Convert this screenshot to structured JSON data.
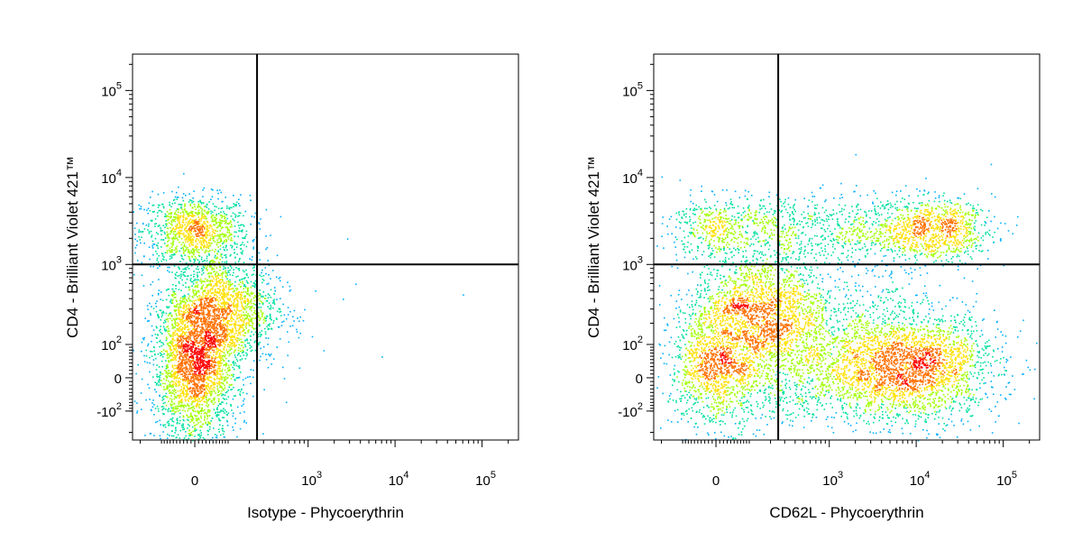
{
  "chart_data": [
    {
      "type": "scatter",
      "style": "density-dot-plot",
      "xlabel": "Isotype - Phycoerythrin",
      "ylabel": "CD4 - Brilliant Violet 421™",
      "x_scale": "biexponential",
      "y_scale": "biexponential",
      "x_ticks": [
        {
          "value": 0,
          "base": "0",
          "exp": ""
        },
        {
          "value": 1000,
          "base": "10",
          "exp": "3"
        },
        {
          "value": 10000,
          "base": "10",
          "exp": "4"
        },
        {
          "value": 100000,
          "base": "10",
          "exp": "5"
        }
      ],
      "y_ticks": [
        {
          "value": -100,
          "base": "-10",
          "exp": "2"
        },
        {
          "value": 0,
          "base": "0",
          "exp": ""
        },
        {
          "value": 100,
          "base": "10",
          "exp": "2"
        },
        {
          "value": 1000,
          "base": "10",
          "exp": "3"
        },
        {
          "value": 10000,
          "base": "10",
          "exp": "4"
        },
        {
          "value": 100000,
          "base": "10",
          "exp": "5"
        }
      ],
      "gate_x": 250,
      "gate_y": 1000,
      "populations": [
        {
          "x": 0,
          "y": 2500,
          "sx": 0.07,
          "sy": 0.045,
          "n": 1100
        },
        {
          "x": 80,
          "y": 300,
          "sx": 0.07,
          "sy": 0.07,
          "n": 1600
        },
        {
          "x": 0,
          "y": 30,
          "sx": 0.055,
          "sy": 0.1,
          "n": 2600
        }
      ],
      "sparse_points": [
        {
          "x": 400,
          "y": 350
        },
        {
          "x": 600,
          "y": 500
        },
        {
          "x": 350,
          "y": 200
        },
        {
          "x": 800,
          "y": 150
        },
        {
          "x": 1500,
          "y": 80
        },
        {
          "x": 2500,
          "y": 400
        },
        {
          "x": 3500,
          "y": 600
        },
        {
          "x": 7000,
          "y": 60
        },
        {
          "x": 60000,
          "y": 450
        },
        {
          "x": 2800,
          "y": 2000
        },
        {
          "x": 500,
          "y": 30
        },
        {
          "x": 900,
          "y": 300
        },
        {
          "x": 450,
          "y": 700
        },
        {
          "x": 1200,
          "y": 500
        },
        {
          "x": 300,
          "y": -30
        }
      ]
    },
    {
      "type": "scatter",
      "style": "density-dot-plot",
      "xlabel": "CD62L - Phycoerythrin",
      "ylabel": "CD4 - Brilliant Violet 421™",
      "x_scale": "biexponential",
      "y_scale": "biexponential",
      "x_ticks": [
        {
          "value": 0,
          "base": "0",
          "exp": ""
        },
        {
          "value": 1000,
          "base": "10",
          "exp": "3"
        },
        {
          "value": 10000,
          "base": "10",
          "exp": "4"
        },
        {
          "value": 100000,
          "base": "10",
          "exp": "5"
        }
      ],
      "y_ticks": [
        {
          "value": -100,
          "base": "-10",
          "exp": "2"
        },
        {
          "value": 0,
          "base": "0",
          "exp": ""
        },
        {
          "value": 100,
          "base": "10",
          "exp": "2"
        },
        {
          "value": 1000,
          "base": "10",
          "exp": "3"
        },
        {
          "value": 10000,
          "base": "10",
          "exp": "4"
        },
        {
          "value": 100000,
          "base": "10",
          "exp": "5"
        }
      ],
      "gate_x": 250,
      "gate_y": 1000,
      "populations": [
        {
          "x": 0,
          "y": 2800,
          "sx": 0.06,
          "sy": 0.04,
          "n": 450
        },
        {
          "x": 15000,
          "y": 2500,
          "sx": 0.08,
          "sy": 0.04,
          "n": 700
        },
        {
          "x": 150,
          "y": 300,
          "sx": 0.09,
          "sy": 0.07,
          "n": 1500
        },
        {
          "x": 0,
          "y": 30,
          "sx": 0.06,
          "sy": 0.08,
          "n": 1300
        },
        {
          "x": 8000,
          "y": 30,
          "sx": 0.12,
          "sy": 0.07,
          "n": 1800
        }
      ],
      "bridges": [
        {
          "x1": 100,
          "x2": 40000,
          "y": 2600,
          "sy": 0.045,
          "n": 900
        },
        {
          "x1": 100,
          "x2": 40000,
          "y": 30,
          "sy": 0.075,
          "n": 1600
        },
        {
          "x1": 0,
          "x2": 8000,
          "y": 300,
          "sy": 0.1,
          "n": 500
        }
      ]
    }
  ]
}
